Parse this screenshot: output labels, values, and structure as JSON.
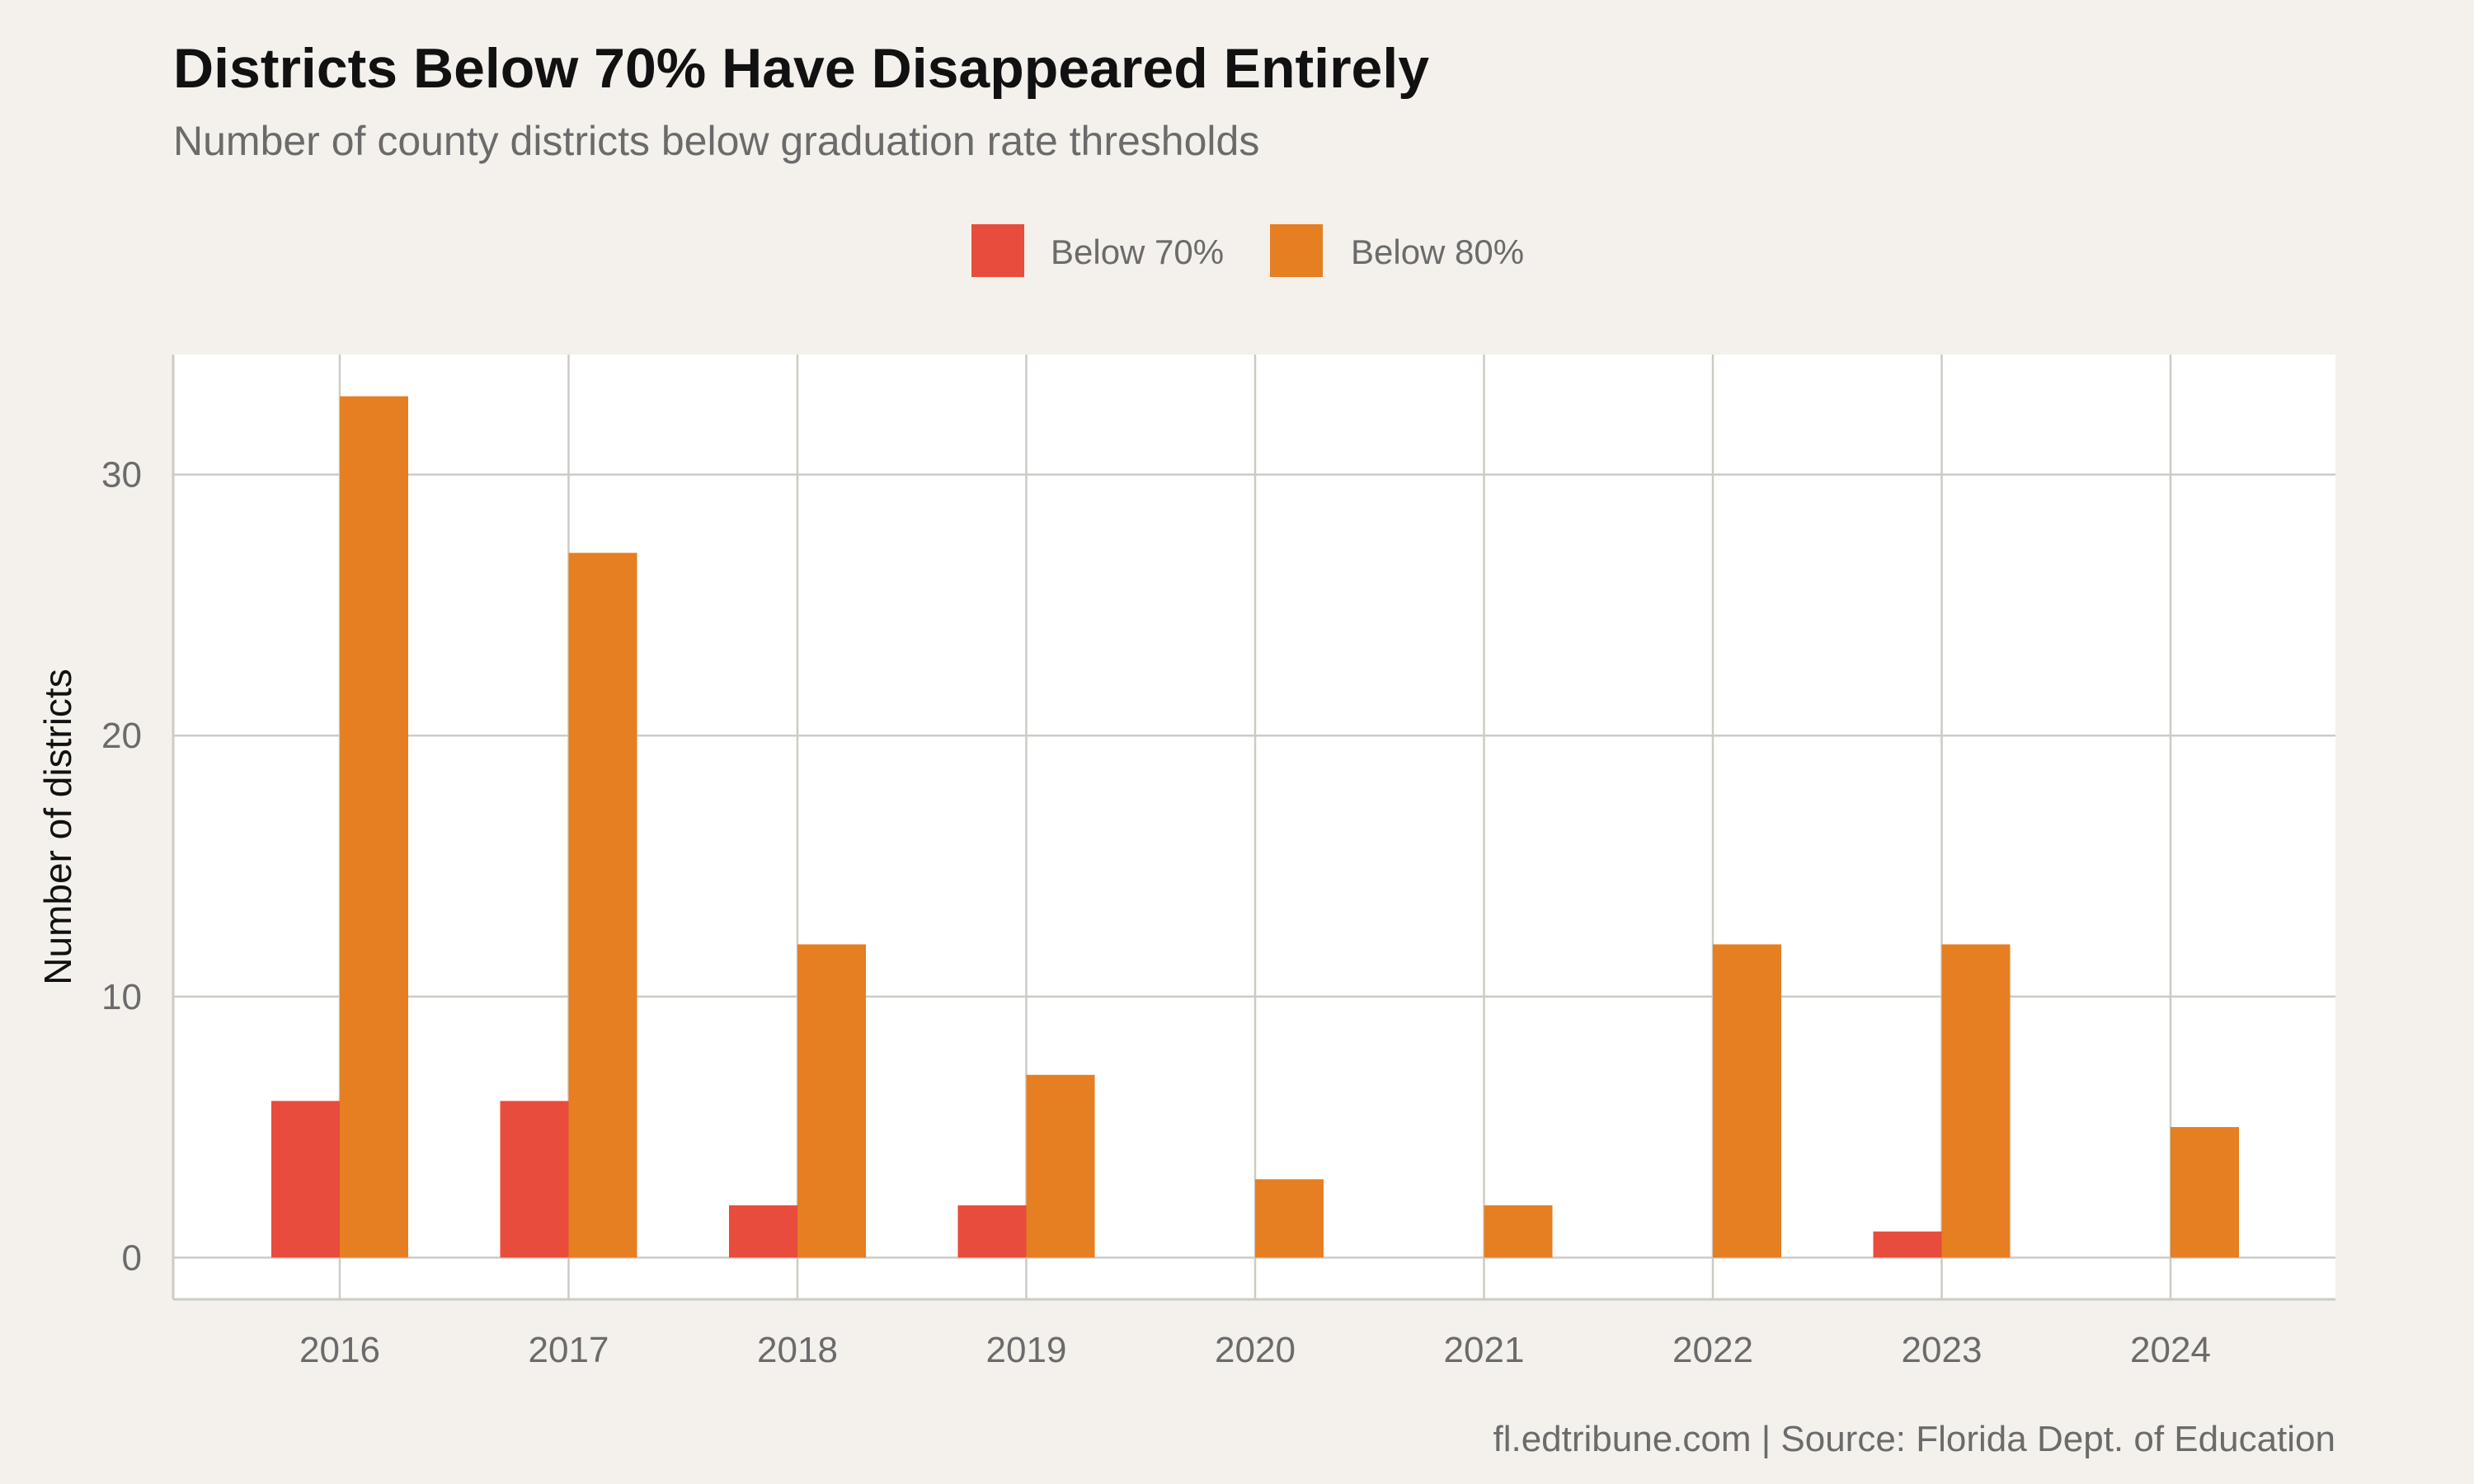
{
  "chart_data": {
    "type": "bar",
    "title": "Districts Below 70% Have Disappeared Entirely",
    "subtitle": "Number of county districts below graduation rate thresholds",
    "xlabel": "",
    "ylabel": "Number of districts",
    "caption": "fl.edtribune.com | Source: Florida Dept. of Education",
    "categories": [
      "2016",
      "2017",
      "2018",
      "2019",
      "2020",
      "2021",
      "2022",
      "2023",
      "2024"
    ],
    "series": [
      {
        "name": "Below 70%",
        "color": "#E74C3C",
        "values": [
          6,
          6,
          2,
          2,
          0,
          0,
          0,
          1,
          0
        ]
      },
      {
        "name": "Below 80%",
        "color": "#E67E22",
        "values": [
          33,
          27,
          12,
          7,
          3,
          2,
          12,
          12,
          5
        ]
      }
    ],
    "ylim": [
      -1.6,
      34.6
    ],
    "yticks": [
      0,
      10,
      20,
      30
    ],
    "grid": true,
    "legend_position": "top",
    "panel_background": "#FFFFFF",
    "page_background": "#F4F1EC",
    "grid_color": "#CDCBC3"
  }
}
